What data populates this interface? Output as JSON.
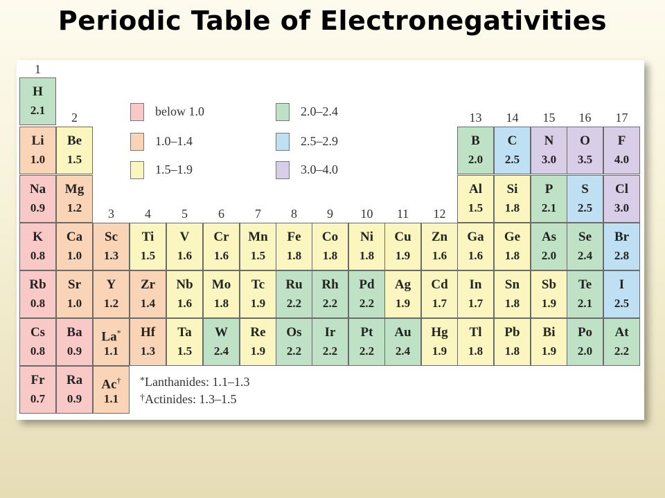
{
  "title": "Periodic Table of Electronegativities",
  "colors": {
    "below_1_0": "#f8c9c6",
    "1_0_1_4": "#f9d4b6",
    "1_5_1_9": "#fbf6c0",
    "2_0_2_4": "#bfe1c5",
    "2_5_2_9": "#bfe0f3",
    "3_0_4_0": "#d8cee8"
  },
  "legend": [
    {
      "label": "below 1.0",
      "color": "#f8c9c6"
    },
    {
      "label": "1.0–1.4",
      "color": "#f9d4b6"
    },
    {
      "label": "1.5–1.9",
      "color": "#fbf6c0"
    },
    {
      "label": "2.0–2.4",
      "color": "#bfe1c5"
    },
    {
      "label": "2.5–2.9",
      "color": "#bfe0f3"
    },
    {
      "label": "3.0–4.0",
      "color": "#d8cee8"
    }
  ],
  "groups": [
    "1",
    "2",
    "3",
    "4",
    "5",
    "6",
    "7",
    "8",
    "9",
    "10",
    "11",
    "12",
    "13",
    "14",
    "15",
    "16",
    "17"
  ],
  "elements": [
    {
      "s": "H",
      "v": "2.1",
      "g": 1,
      "p": 1
    },
    {
      "s": "Li",
      "v": "1.0",
      "g": 1,
      "p": 2
    },
    {
      "s": "Be",
      "v": "1.5",
      "g": 2,
      "p": 2
    },
    {
      "s": "B",
      "v": "2.0",
      "g": 13,
      "p": 2
    },
    {
      "s": "C",
      "v": "2.5",
      "g": 14,
      "p": 2
    },
    {
      "s": "N",
      "v": "3.0",
      "g": 15,
      "p": 2
    },
    {
      "s": "O",
      "v": "3.5",
      "g": 16,
      "p": 2
    },
    {
      "s": "F",
      "v": "4.0",
      "g": 17,
      "p": 2
    },
    {
      "s": "Na",
      "v": "0.9",
      "g": 1,
      "p": 3
    },
    {
      "s": "Mg",
      "v": "1.2",
      "g": 2,
      "p": 3
    },
    {
      "s": "Al",
      "v": "1.5",
      "g": 13,
      "p": 3
    },
    {
      "s": "Si",
      "v": "1.8",
      "g": 14,
      "p": 3
    },
    {
      "s": "P",
      "v": "2.1",
      "g": 15,
      "p": 3
    },
    {
      "s": "S",
      "v": "2.5",
      "g": 16,
      "p": 3
    },
    {
      "s": "Cl",
      "v": "3.0",
      "g": 17,
      "p": 3
    },
    {
      "s": "K",
      "v": "0.8",
      "g": 1,
      "p": 4
    },
    {
      "s": "Ca",
      "v": "1.0",
      "g": 2,
      "p": 4
    },
    {
      "s": "Sc",
      "v": "1.3",
      "g": 3,
      "p": 4
    },
    {
      "s": "Ti",
      "v": "1.5",
      "g": 4,
      "p": 4
    },
    {
      "s": "V",
      "v": "1.6",
      "g": 5,
      "p": 4
    },
    {
      "s": "Cr",
      "v": "1.6",
      "g": 6,
      "p": 4
    },
    {
      "s": "Mn",
      "v": "1.5",
      "g": 7,
      "p": 4
    },
    {
      "s": "Fe",
      "v": "1.8",
      "g": 8,
      "p": 4
    },
    {
      "s": "Co",
      "v": "1.8",
      "g": 9,
      "p": 4
    },
    {
      "s": "Ni",
      "v": "1.8",
      "g": 10,
      "p": 4
    },
    {
      "s": "Cu",
      "v": "1.9",
      "g": 11,
      "p": 4
    },
    {
      "s": "Zn",
      "v": "1.6",
      "g": 12,
      "p": 4
    },
    {
      "s": "Ga",
      "v": "1.6",
      "g": 13,
      "p": 4
    },
    {
      "s": "Ge",
      "v": "1.8",
      "g": 14,
      "p": 4
    },
    {
      "s": "As",
      "v": "2.0",
      "g": 15,
      "p": 4
    },
    {
      "s": "Se",
      "v": "2.4",
      "g": 16,
      "p": 4
    },
    {
      "s": "Br",
      "v": "2.8",
      "g": 17,
      "p": 4
    },
    {
      "s": "Rb",
      "v": "0.8",
      "g": 1,
      "p": 5
    },
    {
      "s": "Sr",
      "v": "1.0",
      "g": 2,
      "p": 5
    },
    {
      "s": "Y",
      "v": "1.2",
      "g": 3,
      "p": 5
    },
    {
      "s": "Zr",
      "v": "1.4",
      "g": 4,
      "p": 5
    },
    {
      "s": "Nb",
      "v": "1.6",
      "g": 5,
      "p": 5
    },
    {
      "s": "Mo",
      "v": "1.8",
      "g": 6,
      "p": 5
    },
    {
      "s": "Tc",
      "v": "1.9",
      "g": 7,
      "p": 5
    },
    {
      "s": "Ru",
      "v": "2.2",
      "g": 8,
      "p": 5
    },
    {
      "s": "Rh",
      "v": "2.2",
      "g": 9,
      "p": 5
    },
    {
      "s": "Pd",
      "v": "2.2",
      "g": 10,
      "p": 5
    },
    {
      "s": "Ag",
      "v": "1.9",
      "g": 11,
      "p": 5
    },
    {
      "s": "Cd",
      "v": "1.7",
      "g": 12,
      "p": 5
    },
    {
      "s": "In",
      "v": "1.7",
      "g": 13,
      "p": 5
    },
    {
      "s": "Sn",
      "v": "1.8",
      "g": 14,
      "p": 5
    },
    {
      "s": "Sb",
      "v": "1.9",
      "g": 15,
      "p": 5
    },
    {
      "s": "Te",
      "v": "2.1",
      "g": 16,
      "p": 5
    },
    {
      "s": "I",
      "v": "2.5",
      "g": 17,
      "p": 5
    },
    {
      "s": "Cs",
      "v": "0.8",
      "g": 1,
      "p": 6
    },
    {
      "s": "Ba",
      "v": "0.9",
      "g": 2,
      "p": 6
    },
    {
      "s": "La",
      "m": "*",
      "v": "1.1",
      "g": 3,
      "p": 6
    },
    {
      "s": "Hf",
      "v": "1.3",
      "g": 4,
      "p": 6
    },
    {
      "s": "Ta",
      "v": "1.5",
      "g": 5,
      "p": 6
    },
    {
      "s": "W",
      "v": "2.4",
      "g": 6,
      "p": 6
    },
    {
      "s": "Re",
      "v": "1.9",
      "g": 7,
      "p": 6
    },
    {
      "s": "Os",
      "v": "2.2",
      "g": 8,
      "p": 6
    },
    {
      "s": "Ir",
      "v": "2.2",
      "g": 9,
      "p": 6
    },
    {
      "s": "Pt",
      "v": "2.2",
      "g": 10,
      "p": 6
    },
    {
      "s": "Au",
      "v": "2.4",
      "g": 11,
      "p": 6
    },
    {
      "s": "Hg",
      "v": "1.9",
      "g": 12,
      "p": 6
    },
    {
      "s": "Tl",
      "v": "1.8",
      "g": 13,
      "p": 6
    },
    {
      "s": "Pb",
      "v": "1.8",
      "g": 14,
      "p": 6
    },
    {
      "s": "Bi",
      "v": "1.9",
      "g": 15,
      "p": 6
    },
    {
      "s": "Po",
      "v": "2.0",
      "g": 16,
      "p": 6
    },
    {
      "s": "At",
      "v": "2.2",
      "g": 17,
      "p": 6
    },
    {
      "s": "Fr",
      "v": "0.7",
      "g": 1,
      "p": 7
    },
    {
      "s": "Ra",
      "v": "0.9",
      "g": 2,
      "p": 7
    },
    {
      "s": "Ac",
      "m": "†",
      "v": "1.1",
      "g": 3,
      "p": 7
    }
  ],
  "notes": [
    {
      "mark": "*",
      "text": "Lanthanides: 1.1–1.3"
    },
    {
      "mark": "†",
      "text": "Actinides: 1.3–1.5"
    }
  ]
}
